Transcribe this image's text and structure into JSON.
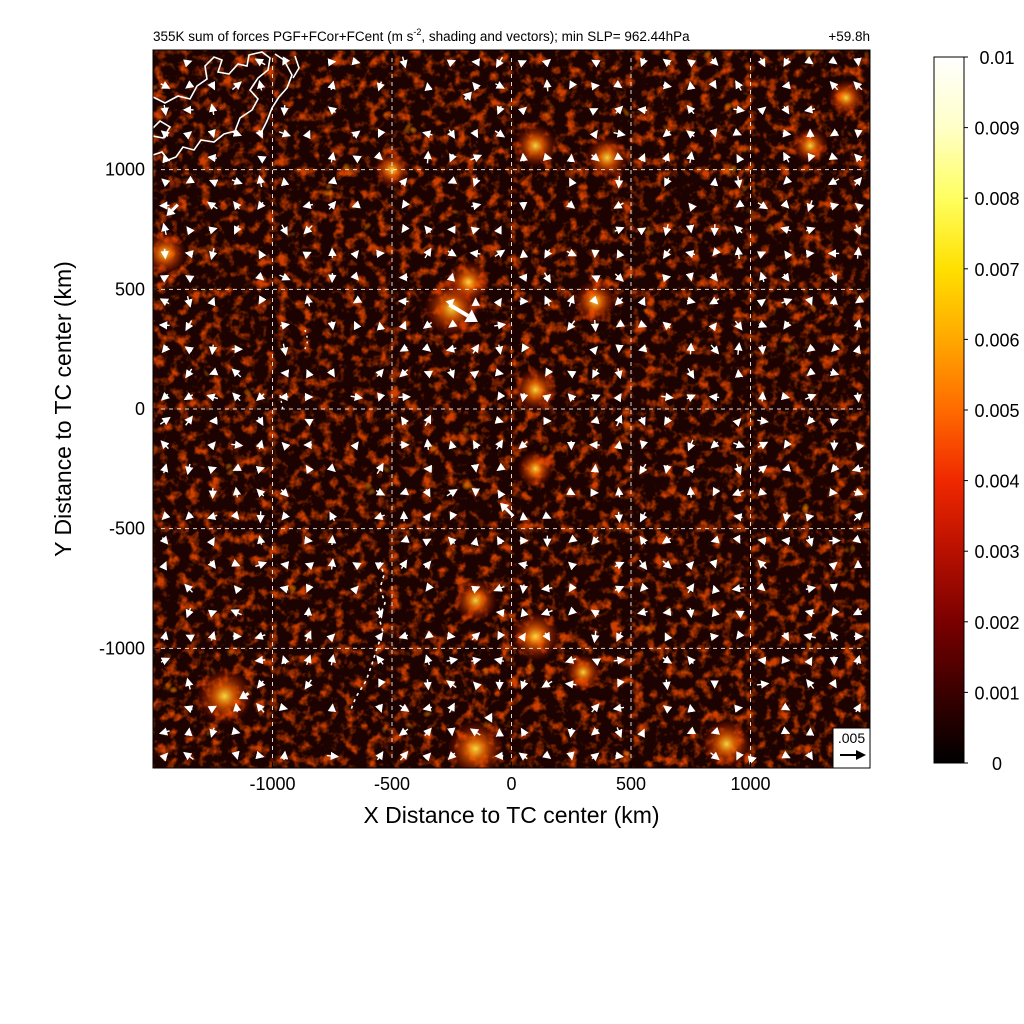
{
  "chart_data": {
    "type": "heatmap",
    "title": "355K sum of forces PGF+FCor+FCent (m s⁻², shading and vectors); min SLP= 962.44hPa",
    "title_main": "355K sum of forces PGF+FCor+FCent (m s",
    "title_sup": "-2",
    "title_rest": ", shading and vectors); min SLP= 962.44hPa",
    "time_label": "+59.8h",
    "xlabel": "X Distance to TC center (km)",
    "ylabel": "Y Distance to TC center (km)",
    "xlim": [
      -1500,
      1500
    ],
    "ylim": [
      -1500,
      1500
    ],
    "x_ticks": [
      -1000,
      -500,
      0,
      500,
      1000
    ],
    "x_tick_labels": [
      "-1000",
      "-500",
      "0",
      "500",
      "1000"
    ],
    "y_ticks": [
      -1000,
      -500,
      0,
      500,
      1000
    ],
    "y_tick_labels": [
      "-1000",
      "-500",
      "0",
      "500",
      "1000"
    ],
    "grid": "dashed white at tick positions",
    "colorbar": {
      "min": 0,
      "max": 0.01,
      "ticks": [
        0,
        0.001,
        0.002,
        0.003,
        0.004,
        0.005,
        0.006,
        0.007,
        0.008,
        0.009,
        0.01
      ],
      "tick_labels": [
        "0",
        "0.001",
        "0.002",
        "0.003",
        "0.004",
        "0.005",
        "0.006",
        "0.007",
        "0.008",
        "0.009",
        "0.01"
      ],
      "colormap": [
        "#000000",
        "#3a0000",
        "#7a0000",
        "#b81000",
        "#f02800",
        "#ff6a00",
        "#ffa800",
        "#ffe000",
        "#ffff60",
        "#ffffc8",
        "#ffffff"
      ]
    },
    "reference_vector": {
      "label": ".005",
      "magnitude": 0.005
    },
    "coastline_color": "#ffffff",
    "hotspots": [
      {
        "x": -250,
        "y": 420,
        "value": 0.006
      },
      {
        "x": -180,
        "y": 530,
        "value": 0.004
      },
      {
        "x": 350,
        "y": 450,
        "value": 0.004
      },
      {
        "x": -1200,
        "y": -1200,
        "value": 0.006
      },
      {
        "x": -150,
        "y": -1420,
        "value": 0.006
      },
      {
        "x": 900,
        "y": -1400,
        "value": 0.005
      },
      {
        "x": 100,
        "y": -950,
        "value": 0.005
      },
      {
        "x": -150,
        "y": -800,
        "value": 0.004
      },
      {
        "x": 100,
        "y": 1100,
        "value": 0.004
      },
      {
        "x": 400,
        "y": 1050,
        "value": 0.004
      },
      {
        "x": -500,
        "y": 1000,
        "value": 0.003
      },
      {
        "x": 1250,
        "y": 1100,
        "value": 0.003
      },
      {
        "x": 100,
        "y": -250,
        "value": 0.003
      },
      {
        "x": 100,
        "y": 80,
        "value": 0.004
      },
      {
        "x": -1450,
        "y": 650,
        "value": 0.004
      },
      {
        "x": 1400,
        "y": 1300,
        "value": 0.003
      },
      {
        "x": 300,
        "y": -1100,
        "value": 0.003
      }
    ],
    "large_vectors": [
      {
        "x": -200,
        "y": 400,
        "u": 0.0075,
        "v": -0.0045
      },
      {
        "x": -20,
        "y": -420,
        "u": -0.0035,
        "v": 0.0035
      },
      {
        "x": -1420,
        "y": 830,
        "u": -0.003,
        "v": -0.003
      },
      {
        "x": -1120,
        "y": -1200,
        "u": -0.0025,
        "v": -0.0015
      },
      {
        "x": -180,
        "y": 1310,
        "u": 0.0018,
        "v": 0.002
      },
      {
        "x": -100,
        "y": -1290,
        "u": -0.0018,
        "v": 0
      },
      {
        "x": 1000,
        "y": -1460,
        "u": -0.0015,
        "v": 0.0015
      }
    ]
  }
}
